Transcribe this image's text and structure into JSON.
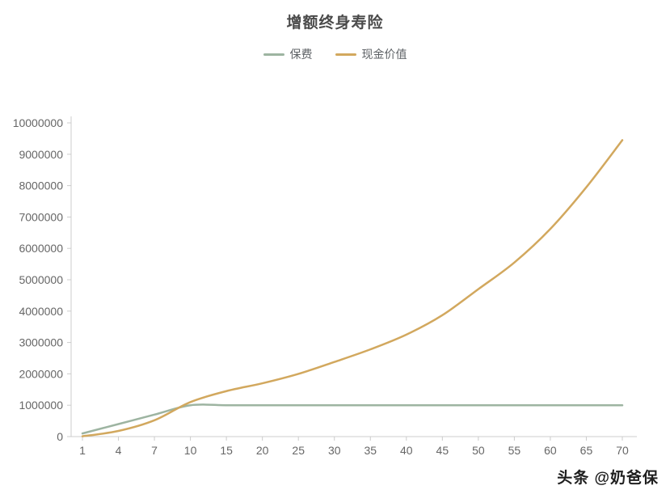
{
  "title": "增额终身寿险",
  "watermark": "头条 @奶爸保",
  "chart_data": {
    "type": "line",
    "title": "增额终身寿险",
    "categories": [
      1,
      4,
      7,
      10,
      15,
      20,
      25,
      30,
      35,
      40,
      45,
      50,
      55,
      60,
      65,
      70
    ],
    "series": [
      {
        "name": "保费",
        "color": "#9db4a1",
        "values": [
          100000,
          400000,
          700000,
          1000000,
          1000000,
          1000000,
          1000000,
          1000000,
          1000000,
          1000000,
          1000000,
          1000000,
          1000000,
          1000000,
          1000000,
          1000000
        ]
      },
      {
        "name": "现金价值",
        "color": "#d2a85e",
        "values": [
          10000,
          180000,
          520000,
          1100000,
          1450000,
          1700000,
          2000000,
          2380000,
          2780000,
          3250000,
          3870000,
          4700000,
          5550000,
          6620000,
          7950000,
          9450000
        ]
      }
    ],
    "xlabel": "",
    "ylabel": "",
    "ylim": [
      0,
      10000000
    ],
    "y_ticks": [
      0,
      1000000,
      2000000,
      3000000,
      4000000,
      5000000,
      6000000,
      7000000,
      8000000,
      9000000,
      10000000
    ],
    "legend_position": "top",
    "grid": false
  }
}
